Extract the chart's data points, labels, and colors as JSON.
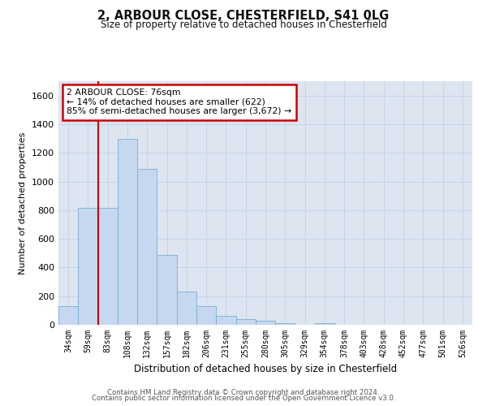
{
  "title": "2, ARBOUR CLOSE, CHESTERFIELD, S41 0LG",
  "subtitle": "Size of property relative to detached houses in Chesterfield",
  "xlabel": "Distribution of detached houses by size in Chesterfield",
  "ylabel": "Number of detached properties",
  "categories": [
    "34sqm",
    "59sqm",
    "83sqm",
    "108sqm",
    "132sqm",
    "157sqm",
    "182sqm",
    "206sqm",
    "231sqm",
    "255sqm",
    "280sqm",
    "305sqm",
    "329sqm",
    "354sqm",
    "378sqm",
    "403sqm",
    "428sqm",
    "452sqm",
    "477sqm",
    "501sqm",
    "526sqm"
  ],
  "values": [
    130,
    815,
    815,
    1295,
    1090,
    490,
    230,
    130,
    65,
    38,
    27,
    10,
    2,
    14,
    0,
    0,
    0,
    0,
    0,
    0,
    0
  ],
  "bar_color": "#c5d8ef",
  "bar_edge_color": "#7aafd4",
  "vline_x": 1.5,
  "vline_color": "#cc0000",
  "annotation_text": "2 ARBOUR CLOSE: 76sqm\n← 14% of detached houses are smaller (622)\n85% of semi-detached houses are larger (3,672) →",
  "annotation_box_color": "#ffffff",
  "annotation_box_edge_color": "#cc0000",
  "ylim": [
    0,
    1700
  ],
  "yticks": [
    0,
    200,
    400,
    600,
    800,
    1000,
    1200,
    1400,
    1600
  ],
  "grid_color": "#c8d4e8",
  "bg_color": "#dce5f0",
  "footer1": "Contains HM Land Registry data © Crown copyright and database right 2024.",
  "footer2": "Contains public sector information licensed under the Open Government Licence v3.0."
}
